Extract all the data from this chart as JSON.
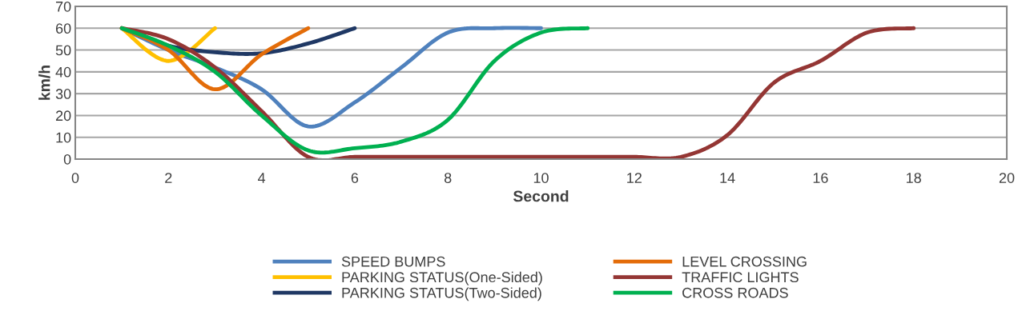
{
  "chart_data": {
    "type": "line",
    "xlabel": "Second",
    "ylabel": "km/h",
    "xlim": [
      0,
      20
    ],
    "ylim": [
      0,
      70
    ],
    "xticks": [
      0,
      2,
      4,
      6,
      8,
      10,
      12,
      14,
      16,
      18,
      20
    ],
    "yticks": [
      0,
      10,
      20,
      30,
      40,
      50,
      60,
      70
    ],
    "grid": "y",
    "legend": "bottom",
    "marker": "none",
    "line_style": "solid",
    "series": [
      {
        "name": "SPEED BUMPS",
        "color": "#4f81bd",
        "x": [
          1,
          2,
          3,
          4,
          5,
          6,
          7,
          8,
          9,
          10
        ],
        "values": [
          60,
          50,
          42,
          32,
          15,
          26,
          42,
          58,
          60,
          60
        ]
      },
      {
        "name": "PARKING STATUS(One-Sided)",
        "color": "#ffc000",
        "x": [
          1,
          2,
          3
        ],
        "values": [
          60,
          45,
          60
        ]
      },
      {
        "name": "PARKING STATUS(Two-Sided)",
        "color": "#1f3864",
        "x": [
          1,
          2,
          3,
          4,
          5,
          6
        ],
        "values": [
          60,
          52,
          49,
          48.5,
          53,
          60
        ]
      },
      {
        "name": "LEVEL CROSSING",
        "color": "#e36c09",
        "x": [
          1,
          2,
          3,
          4,
          5
        ],
        "values": [
          60,
          50,
          32,
          48,
          60
        ]
      },
      {
        "name": "TRAFFIC LIGHTS",
        "color": "#943634",
        "x": [
          1,
          2,
          3,
          4,
          5,
          6,
          7,
          8,
          9,
          10,
          11,
          12,
          13,
          14,
          15,
          16,
          17,
          18
        ],
        "values": [
          60,
          55,
          42,
          22,
          1,
          1,
          1,
          1,
          1,
          1,
          1,
          1,
          1,
          11,
          35,
          45,
          58,
          60
        ]
      },
      {
        "name": "CROSS ROADS",
        "color": "#00b050",
        "x": [
          1,
          2,
          3,
          4,
          5,
          6,
          7,
          8,
          9,
          10,
          11
        ],
        "values": [
          60,
          52,
          40,
          20,
          4,
          5,
          8,
          18,
          45,
          58,
          60
        ]
      }
    ]
  }
}
